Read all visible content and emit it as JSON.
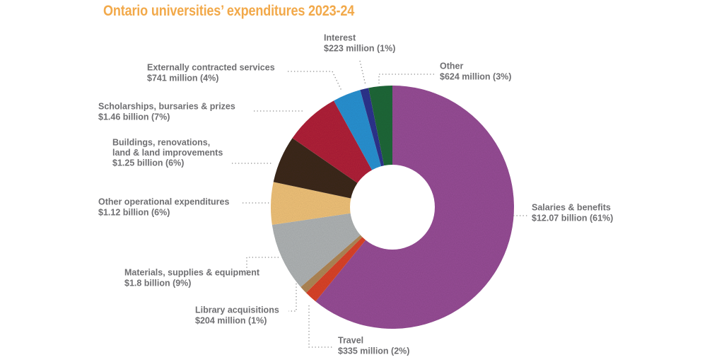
{
  "title": "Ontario universities’ expenditures 2023-24",
  "chart_data": {
    "type": "pie",
    "variant": "donut",
    "title": "Ontario universities’ expenditures 2023-24",
    "unit": "$ millions",
    "slices": [
      {
        "key": "salaries",
        "label": "Salaries & benefits",
        "value_text": "$12.07 billion (61%)",
        "value": 12070,
        "percent": 61,
        "color": "#9b4f9a"
      },
      {
        "key": "travel",
        "label": "Travel",
        "value_text": "$335 million (2%)",
        "value": 335,
        "percent": 2,
        "color": "#e0452b"
      },
      {
        "key": "library",
        "label": "Library acquisitions",
        "value_text": "$204 million (1%)",
        "value": 204,
        "percent": 1,
        "color": "#b58a58"
      },
      {
        "key": "materials",
        "label": "Materials, supplies & equipment",
        "value_text": "$1.8 billion (9%)",
        "value": 1800,
        "percent": 9,
        "color": "#b4b8b9"
      },
      {
        "key": "other_operational",
        "label": "Other operational expenditures",
        "value_text": "$1.12 billion (6%)",
        "value": 1120,
        "percent": 6,
        "color": "#f6c77c"
      },
      {
        "key": "buildings",
        "label": "Buildings, renovations, land & land improvements",
        "label_lines": [
          "Buildings, renovations,",
          "land & land improvements"
        ],
        "value_text": "$1.25 billion (6%)",
        "value": 1250,
        "percent": 6,
        "color": "#3e2a1c"
      },
      {
        "key": "scholarships",
        "label": "Scholarships, bursaries & prizes",
        "value_text": "$1.46 billion (7%)",
        "value": 1460,
        "percent": 7,
        "color": "#b5223a"
      },
      {
        "key": "external",
        "label": "Externally contracted services",
        "value_text": "$741 million (4%)",
        "value": 741,
        "percent": 4,
        "color": "#2a96d8"
      },
      {
        "key": "interest",
        "label": "Interest",
        "value_text": "$223 million (1%)",
        "value": 223,
        "percent": 1,
        "color": "#2f3592"
      },
      {
        "key": "other",
        "label": "Other",
        "value_text": "$624 million (3%)",
        "value": 624,
        "percent": 3,
        "color": "#1f6b3a"
      }
    ]
  }
}
